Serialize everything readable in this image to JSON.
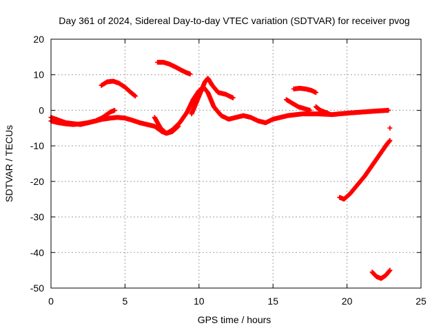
{
  "chart_data": {
    "type": "scatter",
    "title": "Day 361 of 2024, Sidereal Day-to-day VTEC variation (SDTVAR) for receiver pvog",
    "xlabel": "GPS time / hours",
    "ylabel": "SDTVAR / TECUs",
    "xlim": [
      0,
      25
    ],
    "ylim": [
      -50,
      20
    ],
    "xticks": [
      "0",
      "5",
      "10",
      "15",
      "20",
      "25"
    ],
    "yticks": [
      "20",
      "10",
      "0",
      "-10",
      "-20",
      "-30",
      "-40",
      "-50"
    ],
    "grid": true,
    "marker_color": "#ff0000",
    "series": [
      {
        "name": "main-track",
        "x": [
          0,
          0.5,
          1,
          1.5,
          2,
          2.5,
          3,
          3.5,
          4,
          4.5,
          5,
          5.5,
          6,
          6.5,
          7,
          7.5,
          7.8,
          8.2,
          8.7,
          9.2,
          9.6,
          10,
          10.3,
          10.6,
          11,
          11.5,
          12,
          12.5,
          13,
          13.5,
          14,
          14.5,
          15,
          16,
          17,
          18,
          19,
          20,
          21,
          22,
          22.8
        ],
        "y": [
          -3,
          -3.5,
          -3.8,
          -4,
          -3.8,
          -3.5,
          -3,
          -2.5,
          -2.2,
          -2,
          -2.2,
          -2.8,
          -3.5,
          -4,
          -4.5,
          -6,
          -6.5,
          -5.5,
          -3.5,
          -0.5,
          3,
          5.5,
          6.5,
          5,
          1,
          -1.5,
          -2.5,
          -2,
          -1.5,
          -2,
          -3,
          -3.5,
          -2.5,
          -1.5,
          -1,
          -1,
          -1.2,
          -0.8,
          -0.5,
          -0.2,
          0
        ]
      },
      {
        "name": "arc-4h",
        "x": [
          3.4,
          3.8,
          4.2,
          4.6,
          5,
          5.4,
          5.7
        ],
        "y": [
          7,
          8,
          8.2,
          7.6,
          6.5,
          5,
          4
        ]
      },
      {
        "name": "arc-8h",
        "x": [
          7.2,
          7.6,
          8,
          8.4,
          8.8,
          9.2,
          9.4
        ],
        "y": [
          13.5,
          13.5,
          13,
          12.2,
          11.3,
          10.5,
          10.2
        ]
      },
      {
        "name": "early-wave",
        "x": [
          0,
          1,
          2,
          3,
          3.5,
          4,
          4.3
        ],
        "y": [
          -2,
          -3.5,
          -4,
          -3,
          -2,
          -0.5,
          0
        ]
      },
      {
        "name": "dip-8h",
        "x": [
          7,
          7.4,
          7.8,
          8.2,
          8.6
        ],
        "y": [
          -2,
          -5,
          -6.5,
          -6,
          -4.5
        ]
      },
      {
        "name": "spike-10h",
        "x": [
          9.5,
          9.8,
          10.1,
          10.4,
          10.6,
          10.9,
          11.3,
          11.8,
          12.3
        ],
        "y": [
          -1,
          2,
          5,
          8,
          9,
          7,
          5,
          4.5,
          3.5
        ]
      },
      {
        "name": "arc-17h",
        "x": [
          16.4,
          16.8,
          17.2,
          17.6,
          17.9
        ],
        "y": [
          6,
          6.2,
          6,
          5.6,
          5
        ]
      },
      {
        "name": "segment-16h",
        "x": [
          15.9,
          16.3,
          16.7,
          17.1,
          17.5
        ],
        "y": [
          3,
          2,
          1,
          0.5,
          0
        ]
      },
      {
        "name": "segment-18h",
        "x": [
          17.9,
          18.2,
          18.5,
          18.8
        ],
        "y": [
          1,
          0,
          -0.5,
          -1
        ]
      },
      {
        "name": "ramp-20h",
        "x": [
          19.5,
          19.8,
          20.2,
          20.7,
          21.2,
          21.7,
          22.2,
          22.7,
          22.9
        ],
        "y": [
          -24.5,
          -25,
          -23.5,
          -21,
          -18.5,
          -15.5,
          -12.5,
          -9.5,
          -8.5
        ]
      },
      {
        "name": "point-22.9h",
        "x": [
          22.9
        ],
        "y": [
          -5
        ]
      },
      {
        "name": "dip-22h",
        "x": [
          21.7,
          22,
          22.3,
          22.6,
          22.9
        ],
        "y": [
          -45.5,
          -46.8,
          -47.3,
          -46.5,
          -45
        ]
      }
    ]
  }
}
